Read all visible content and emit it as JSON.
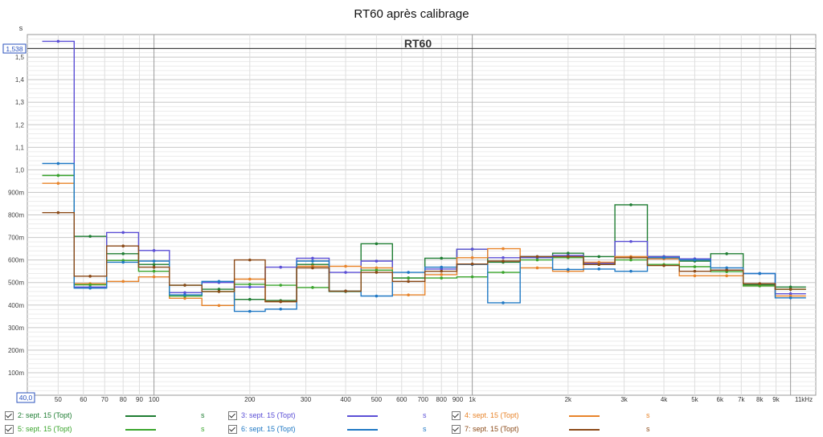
{
  "chart_data": {
    "type": "line",
    "title": "RT60 après calibrage",
    "inner_title": "RT60",
    "ylabel": "s",
    "xlabel": "",
    "y_axis_readout": "1,538",
    "x_axis_readout": "40,0",
    "xscale": "log",
    "xlim": [
      40,
      12000
    ],
    "ylim": [
      0,
      1.6
    ],
    "grid": true,
    "y_ticks": [
      {
        "v": 0.1,
        "label": "100m"
      },
      {
        "v": 0.2,
        "label": "200m"
      },
      {
        "v": 0.3,
        "label": "300m"
      },
      {
        "v": 0.4,
        "label": "400m"
      },
      {
        "v": 0.5,
        "label": "500m"
      },
      {
        "v": 0.6,
        "label": "600m"
      },
      {
        "v": 0.7,
        "label": "700m"
      },
      {
        "v": 0.8,
        "label": "800m"
      },
      {
        "v": 0.9,
        "label": "900m"
      },
      {
        "v": 1.0,
        "label": "1,0"
      },
      {
        "v": 1.1,
        "label": "1,1"
      },
      {
        "v": 1.2,
        "label": "1,2"
      },
      {
        "v": 1.3,
        "label": "1,3"
      },
      {
        "v": 1.4,
        "label": "1,4"
      },
      {
        "v": 1.5,
        "label": "1,5"
      }
    ],
    "x_ticks": [
      {
        "v": 50,
        "label": "50"
      },
      {
        "v": 60,
        "label": "60"
      },
      {
        "v": 70,
        "label": "70"
      },
      {
        "v": 80,
        "label": "80"
      },
      {
        "v": 90,
        "label": "90"
      },
      {
        "v": 100,
        "label": "100"
      },
      {
        "v": 200,
        "label": "200"
      },
      {
        "v": 300,
        "label": "300"
      },
      {
        "v": 400,
        "label": "400"
      },
      {
        "v": 500,
        "label": "500"
      },
      {
        "v": 600,
        "label": "600"
      },
      {
        "v": 700,
        "label": "700"
      },
      {
        "v": 800,
        "label": "800"
      },
      {
        "v": 900,
        "label": "900"
      },
      {
        "v": 1000,
        "label": "1k"
      },
      {
        "v": 2000,
        "label": "2k"
      },
      {
        "v": 3000,
        "label": "3k"
      },
      {
        "v": 4000,
        "label": "4k"
      },
      {
        "v": 5000,
        "label": "5k"
      },
      {
        "v": 6000,
        "label": "6k"
      },
      {
        "v": 7000,
        "label": "7k"
      },
      {
        "v": 8000,
        "label": "8k"
      },
      {
        "v": 9000,
        "label": "9k"
      },
      {
        "v": 11000,
        "label": "11kHz"
      }
    ],
    "x": [
      50,
      63,
      80,
      100,
      125,
      160,
      200,
      250,
      315,
      400,
      500,
      630,
      800,
      1000,
      1250,
      1600,
      2000,
      2500,
      3150,
      4000,
      5000,
      6300,
      8000,
      10000
    ],
    "series": [
      {
        "name": "2: sept. 15 (Topt)",
        "unit": "s",
        "color": "#1e7d32",
        "values": [
          0.975,
          0.705,
          0.628,
          0.58,
          0.488,
          0.47,
          0.425,
          0.42,
          0.58,
          0.46,
          0.672,
          0.52,
          0.608,
          0.648,
          0.59,
          0.61,
          0.63,
          0.615,
          0.845,
          0.615,
          0.595,
          0.628,
          0.49,
          0.48
        ]
      },
      {
        "name": "3: sept. 15 (Topt)",
        "unit": "s",
        "color": "#5b4fd6",
        "values": [
          1.57,
          0.48,
          0.722,
          0.642,
          0.455,
          0.5,
          0.48,
          0.568,
          0.608,
          0.545,
          0.595,
          0.52,
          0.56,
          0.648,
          0.61,
          0.61,
          0.62,
          0.585,
          0.682,
          0.615,
          0.605,
          0.555,
          0.54,
          0.45
        ]
      },
      {
        "name": "4: sept. 15 (Topt)",
        "unit": "s",
        "color": "#e8842a",
        "values": [
          0.94,
          0.495,
          0.505,
          0.525,
          0.43,
          0.398,
          0.515,
          0.415,
          0.572,
          0.572,
          0.565,
          0.445,
          0.535,
          0.61,
          0.65,
          0.565,
          0.55,
          0.59,
          0.615,
          0.605,
          0.53,
          0.53,
          0.485,
          0.44
        ]
      },
      {
        "name": "5: sept. 15 (Topt)",
        "unit": "s",
        "color": "#3aa52c",
        "values": [
          0.975,
          0.49,
          0.598,
          0.55,
          0.44,
          0.46,
          0.492,
          0.488,
          0.478,
          0.462,
          0.555,
          0.52,
          0.52,
          0.525,
          0.545,
          0.6,
          0.61,
          0.58,
          0.6,
          0.58,
          0.57,
          0.548,
          0.485,
          0.47
        ]
      },
      {
        "name": "6: sept. 15 (Topt)",
        "unit": "s",
        "color": "#1f78c4",
        "values": [
          1.028,
          0.475,
          0.59,
          0.595,
          0.445,
          0.505,
          0.372,
          0.382,
          0.595,
          0.462,
          0.44,
          0.545,
          0.568,
          0.58,
          0.41,
          0.615,
          0.558,
          0.56,
          0.55,
          0.61,
          0.6,
          0.565,
          0.54,
          0.432
        ]
      },
      {
        "name": "7: sept. 15 (Topt)",
        "unit": "s",
        "color": "#8b4a18",
        "values": [
          0.81,
          0.528,
          0.662,
          0.568,
          0.488,
          0.46,
          0.6,
          0.415,
          0.565,
          0.462,
          0.545,
          0.505,
          0.55,
          0.582,
          0.595,
          0.615,
          0.615,
          0.58,
          0.61,
          0.575,
          0.55,
          0.555,
          0.495,
          0.47
        ]
      }
    ]
  }
}
